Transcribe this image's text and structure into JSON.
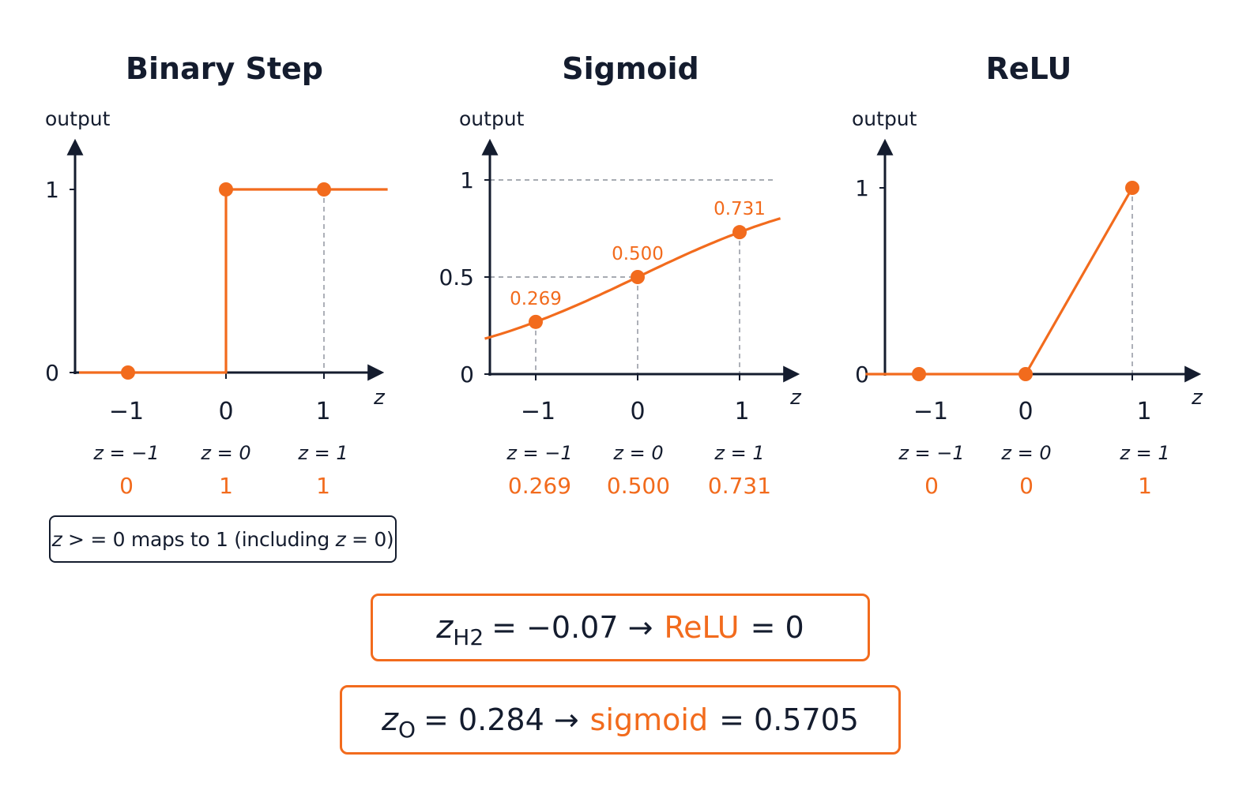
{
  "colors": {
    "accent": "#f26b1d",
    "ink": "#141c2e",
    "grid": "#8a8f99"
  },
  "charts": [
    {
      "title": "Binary Step",
      "ylabel": "output",
      "xlabel": "z",
      "x_label_ticks": [
        "−1",
        "0",
        "1"
      ],
      "col_headers": [
        "z = −1",
        "z = 0",
        "z = 1"
      ],
      "col_values": [
        "0",
        "1",
        "1"
      ]
    },
    {
      "title": "Sigmoid",
      "ylabel": "output",
      "xlabel": "z",
      "x_label_ticks": [
        "−1",
        "0",
        "1"
      ],
      "col_headers": [
        "z = −1",
        "z = 0",
        "z = 1"
      ],
      "col_values": [
        "0.269",
        "0.500",
        "0.731"
      ]
    },
    {
      "title": "ReLU",
      "ylabel": "output",
      "xlabel": "z",
      "x_label_ticks": [
        "−1",
        "0",
        "1"
      ],
      "col_headers": [
        "z = −1",
        "z = 0",
        "z = 1"
      ],
      "col_values": [
        "0",
        "0",
        "1"
      ]
    }
  ],
  "chart_data": [
    {
      "type": "line",
      "title": "Binary Step",
      "xlabel": "z",
      "ylabel": "output",
      "xlim": [
        -1.5,
        1.65
      ],
      "ylim": [
        0,
        1.15
      ],
      "x_ticks": [
        -1,
        0,
        1
      ],
      "y_ticks": [
        0,
        1
      ],
      "y_tick_labels": [
        "0",
        "1"
      ],
      "curve": [
        [
          -1.5,
          0
        ],
        [
          0,
          0
        ],
        [
          0,
          1
        ],
        [
          1.65,
          1
        ]
      ],
      "points": [
        {
          "x": -1,
          "y": 0
        },
        {
          "x": 0,
          "y": 1
        },
        {
          "x": 1,
          "y": 1
        }
      ],
      "guides": [
        {
          "x": 1,
          "y": 1,
          "horizontal": false
        }
      ],
      "point_labels": []
    },
    {
      "type": "line",
      "title": "Sigmoid",
      "xlabel": "z",
      "ylabel": "output",
      "xlim": [
        -1.5,
        1.65
      ],
      "ylim": [
        0,
        1.15
      ],
      "x_ticks": [
        -1,
        0,
        1
      ],
      "y_ticks": [
        0,
        0.5,
        1
      ],
      "y_tick_labels": [
        "0",
        "0.5",
        "1"
      ],
      "curve_fn": "sigmoid",
      "curve_range": [
        -1.5,
        1.4
      ],
      "points": [
        {
          "x": -1,
          "y": 0.269
        },
        {
          "x": 0,
          "y": 0.5
        },
        {
          "x": 1,
          "y": 0.731
        }
      ],
      "guides": [
        {
          "x": -1,
          "y": 0.269,
          "horizontal": false
        },
        {
          "x": 0,
          "y": 0.5,
          "horizontal": true
        },
        {
          "x": 1,
          "y": 0.731,
          "horizontal": false
        }
      ],
      "ref_line_y": 1,
      "point_labels": [
        "0.269",
        "0.500",
        "0.731"
      ]
    },
    {
      "type": "line",
      "title": "ReLU",
      "xlabel": "z",
      "ylabel": "output",
      "xlim": [
        -1.5,
        1.65
      ],
      "ylim": [
        0,
        1.15
      ],
      "x_ticks": [
        -1,
        0,
        1
      ],
      "y_ticks": [
        0,
        1
      ],
      "y_tick_labels": [
        "0",
        "1"
      ],
      "curve": [
        [
          -1.5,
          0
        ],
        [
          0,
          0
        ],
        [
          1,
          1
        ]
      ],
      "points": [
        {
          "x": -1,
          "y": 0
        },
        {
          "x": 0,
          "y": 0
        },
        {
          "x": 1,
          "y": 1
        }
      ],
      "guides": [
        {
          "x": 1,
          "y": 1,
          "horizontal": false
        }
      ],
      "point_labels": []
    }
  ],
  "note": {
    "z": "z",
    "rest": " > = 0 maps to 1 (including ",
    "z2": "z",
    "end": " = 0)"
  },
  "results": [
    {
      "var": "z",
      "sub": "H2",
      "expr": "= −0.07 →",
      "fn": "ReLU",
      "out": "= 0"
    },
    {
      "var": "z",
      "sub": "O",
      "expr": "= 0.284 →",
      "fn": "sigmoid",
      "out": "= 0.5705"
    }
  ]
}
